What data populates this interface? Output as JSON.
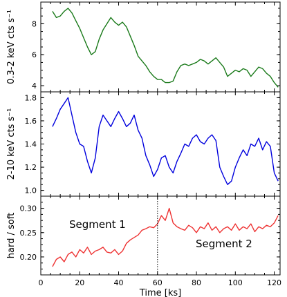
{
  "chart_data": [
    {
      "type": "line",
      "panel": "top",
      "ylabel": "0.3-2 keV cts s⁻¹",
      "xlim": [
        0,
        123
      ],
      "ylim": [
        3.6,
        9.4
      ],
      "yticks": [
        "4",
        "6",
        "8"
      ],
      "series": [
        {
          "color": "#1a7a1a",
          "x": [
            6,
            8,
            10,
            12,
            14,
            16,
            18,
            20,
            22,
            24,
            26,
            28,
            30,
            32,
            34,
            36,
            38,
            40,
            42,
            44,
            46,
            48,
            50,
            52,
            54,
            56,
            58,
            60,
            62,
            64,
            66,
            68,
            70,
            72,
            74,
            76,
            78,
            80,
            82,
            84,
            86,
            88,
            90,
            92,
            94,
            96,
            98,
            100,
            102,
            104,
            106,
            108,
            110,
            112,
            114,
            116,
            118,
            120,
            122
          ],
          "values": [
            8.8,
            8.4,
            8.5,
            8.8,
            9.0,
            8.7,
            8.2,
            7.7,
            7.1,
            6.5,
            6.0,
            6.2,
            7.0,
            7.6,
            8.0,
            8.4,
            8.1,
            7.9,
            8.1,
            7.8,
            7.2,
            6.6,
            5.9,
            5.6,
            5.3,
            4.9,
            4.6,
            4.4,
            4.4,
            4.2,
            4.2,
            4.3,
            4.9,
            5.3,
            5.4,
            5.3,
            5.4,
            5.5,
            5.7,
            5.6,
            5.4,
            5.6,
            5.8,
            5.5,
            5.2,
            4.6,
            4.8,
            5.0,
            4.9,
            5.1,
            5.0,
            4.6,
            4.9,
            5.2,
            5.1,
            4.8,
            4.6,
            4.2,
            3.9
          ]
        }
      ]
    },
    {
      "type": "line",
      "panel": "middle",
      "ylabel": "2-10 keV cts s⁻¹",
      "xlim": [
        0,
        123
      ],
      "ylim": [
        0.95,
        1.85
      ],
      "yticks": [
        "1.0",
        "1.2",
        "1.4",
        "1.6",
        "1.8"
      ],
      "series": [
        {
          "color": "#0000dd",
          "x": [
            6,
            8,
            10,
            12,
            14,
            16,
            18,
            20,
            22,
            24,
            26,
            28,
            30,
            32,
            34,
            36,
            38,
            40,
            42,
            44,
            46,
            48,
            50,
            52,
            54,
            56,
            58,
            60,
            62,
            64,
            66,
            68,
            70,
            72,
            74,
            76,
            78,
            80,
            82,
            84,
            86,
            88,
            90,
            92,
            94,
            96,
            98,
            100,
            102,
            104,
            106,
            108,
            110,
            112,
            114,
            116,
            118,
            120,
            122
          ],
          "values": [
            1.55,
            1.62,
            1.7,
            1.75,
            1.8,
            1.65,
            1.5,
            1.4,
            1.38,
            1.25,
            1.15,
            1.28,
            1.55,
            1.65,
            1.6,
            1.55,
            1.62,
            1.68,
            1.62,
            1.55,
            1.58,
            1.65,
            1.52,
            1.45,
            1.3,
            1.22,
            1.12,
            1.18,
            1.28,
            1.3,
            1.2,
            1.15,
            1.25,
            1.32,
            1.4,
            1.38,
            1.45,
            1.48,
            1.42,
            1.4,
            1.45,
            1.48,
            1.43,
            1.2,
            1.12,
            1.05,
            1.08,
            1.2,
            1.28,
            1.35,
            1.3,
            1.4,
            1.38,
            1.45,
            1.35,
            1.42,
            1.38,
            1.15,
            1.08
          ]
        }
      ]
    },
    {
      "type": "line",
      "panel": "bottom",
      "xlabel": "Time [ks]",
      "ylabel": "hard / soft",
      "xlim": [
        0,
        123
      ],
      "ylim": [
        0.163,
        0.325
      ],
      "xticks": [
        "0",
        "20",
        "40",
        "60",
        "80",
        "100",
        "120"
      ],
      "yticks": [
        "0.20",
        "0.25",
        "0.30"
      ],
      "series": [
        {
          "color": "#ee3333",
          "x": [
            6,
            8,
            10,
            12,
            14,
            16,
            18,
            20,
            22,
            24,
            26,
            28,
            30,
            32,
            34,
            36,
            38,
            40,
            42,
            44,
            46,
            48,
            50,
            52,
            54,
            56,
            58,
            60,
            62,
            64,
            66,
            68,
            70,
            72,
            74,
            76,
            78,
            80,
            82,
            84,
            86,
            88,
            90,
            92,
            94,
            96,
            98,
            100,
            102,
            104,
            106,
            108,
            110,
            112,
            114,
            116,
            118,
            120,
            122
          ],
          "values": [
            0.18,
            0.195,
            0.2,
            0.19,
            0.205,
            0.21,
            0.2,
            0.215,
            0.208,
            0.22,
            0.205,
            0.212,
            0.215,
            0.22,
            0.21,
            0.208,
            0.215,
            0.205,
            0.212,
            0.228,
            0.235,
            0.24,
            0.245,
            0.255,
            0.258,
            0.262,
            0.26,
            0.268,
            0.285,
            0.275,
            0.3,
            0.27,
            0.262,
            0.258,
            0.255,
            0.265,
            0.26,
            0.25,
            0.262,
            0.258,
            0.27,
            0.255,
            0.262,
            0.25,
            0.258,
            0.262,
            0.255,
            0.268,
            0.255,
            0.262,
            0.258,
            0.268,
            0.252,
            0.262,
            0.258,
            0.265,
            0.262,
            0.27,
            0.285
          ]
        }
      ],
      "vline_x": 60,
      "annotations": [
        "Segment 1",
        "Segment 2"
      ]
    }
  ]
}
